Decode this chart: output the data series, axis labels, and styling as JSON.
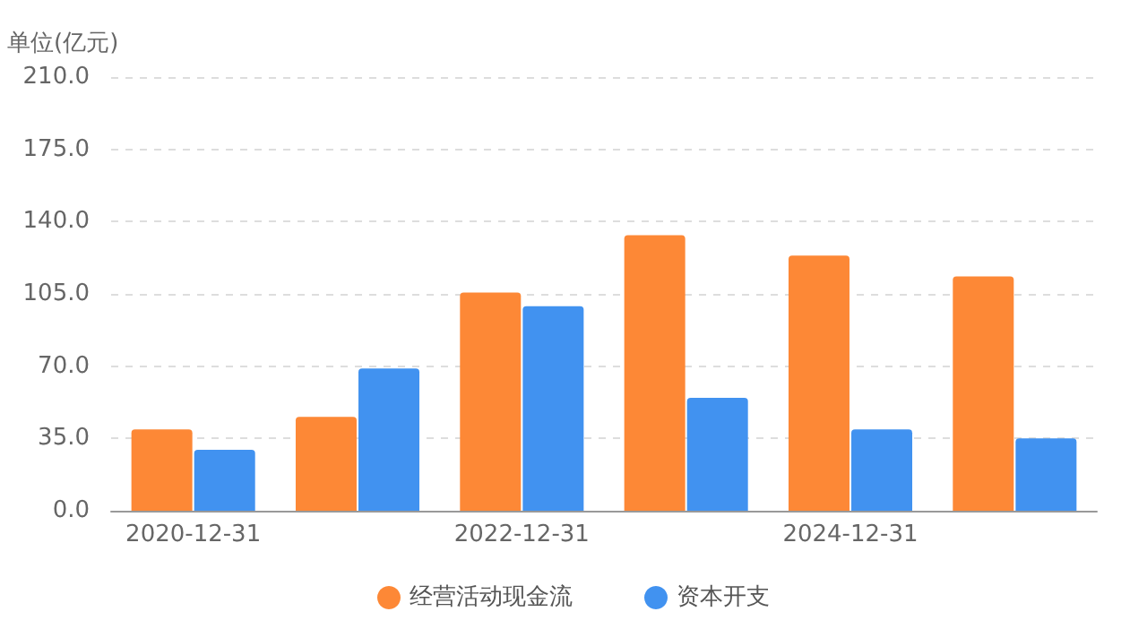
{
  "chart_data": {
    "type": "bar",
    "ylabel": "单位(亿元)",
    "categories": [
      "2020-12-31",
      null,
      "2022-12-31",
      null,
      "2024-12-31",
      null
    ],
    "series": [
      {
        "name": "经营活动现金流",
        "color": "#fd8836",
        "values": [
          39.4,
          45.5,
          105.6,
          133.4,
          123.6,
          113.5
        ]
      },
      {
        "name": "资本开支",
        "color": "#4192f0",
        "values": [
          29.5,
          68.9,
          99,
          54.7,
          39.4,
          35
        ]
      }
    ],
    "ylim": [
      0,
      210
    ],
    "yticks": [
      {
        "value": 0,
        "label": "0.0"
      },
      {
        "value": 35,
        "label": "35.0"
      },
      {
        "value": 70,
        "label": "70.0"
      },
      {
        "value": 105,
        "label": "105.0"
      },
      {
        "value": 140,
        "label": "140.0"
      },
      {
        "value": 175,
        "label": "175.0"
      },
      {
        "value": 210,
        "label": "210.0"
      }
    ],
    "grid": "y",
    "legend": "bottom"
  }
}
